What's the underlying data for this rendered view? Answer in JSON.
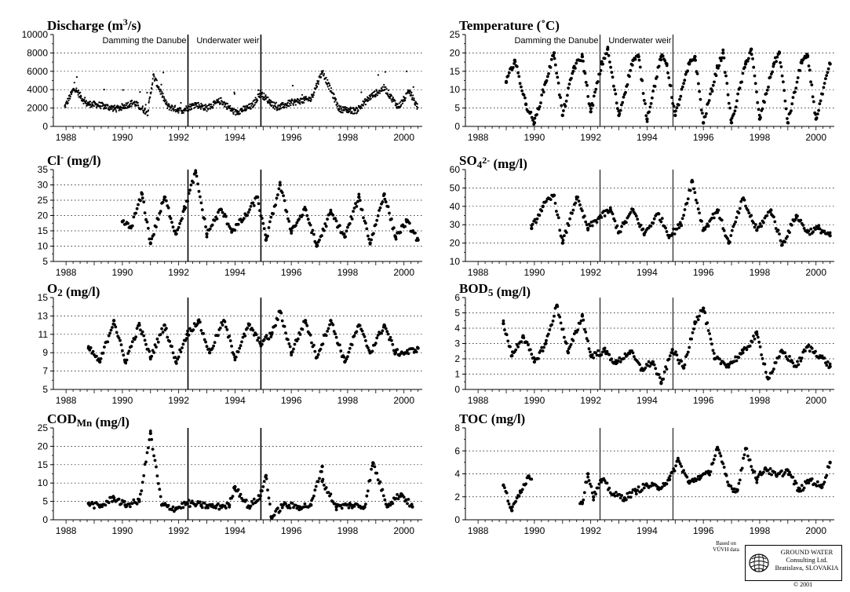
{
  "chart_data": [
    {
      "type": "scatter",
      "title": "Discharge (m³/s)",
      "title_main": "Discharge (m",
      "title_sup": "3",
      "title_tail": "/s)",
      "x_ticks": [
        "1988",
        "1990",
        "1992",
        "1994",
        "1996",
        "1998",
        "2000"
      ],
      "ylim": [
        0,
        10000
      ],
      "y_ticks": [
        0,
        2000,
        4000,
        6000,
        8000,
        10000
      ],
      "y_tick_labels": [
        "0",
        "2000",
        "4000",
        "6000",
        "8000",
        "10000"
      ],
      "grid": "dotted horizontal",
      "event_lines": [
        1992.33,
        1994.92
      ],
      "annotations": [
        "Damming the Danube",
        "Underwater weir"
      ],
      "series_desc": "daily discharge, continuous dense dots",
      "samples": [
        [
          1987.9,
          1800
        ],
        [
          1988.3,
          4200
        ],
        [
          1988.7,
          2500
        ],
        [
          1989.2,
          2300
        ],
        [
          1989.8,
          1900
        ],
        [
          1990.4,
          2600
        ],
        [
          1990.9,
          1500
        ],
        [
          1991.1,
          5500
        ],
        [
          1991.6,
          2200
        ],
        [
          1992.1,
          1700
        ],
        [
          1992.6,
          2400
        ],
        [
          1993.0,
          2000
        ],
        [
          1993.5,
          2800
        ],
        [
          1994.0,
          1500
        ],
        [
          1994.6,
          2200
        ],
        [
          1994.9,
          3600
        ],
        [
          1995.5,
          2000
        ],
        [
          1996.0,
          2600
        ],
        [
          1996.7,
          3000
        ],
        [
          1997.1,
          6000
        ],
        [
          1997.7,
          1900
        ],
        [
          1998.3,
          1700
        ],
        [
          1998.8,
          3200
        ],
        [
          1999.3,
          4200
        ],
        [
          1999.8,
          2100
        ],
        [
          2000.2,
          3800
        ],
        [
          2000.5,
          2000
        ]
      ]
    },
    {
      "type": "scatter",
      "title": "Temperature (˚C)",
      "title_main": "Temperature (˚C)",
      "title_sup": "",
      "title_tail": "",
      "x_ticks": [
        "1988",
        "1990",
        "1992",
        "1994",
        "1996",
        "1998",
        "2000"
      ],
      "ylim": [
        0,
        25
      ],
      "y_ticks": [
        0,
        5,
        10,
        15,
        20,
        25
      ],
      "y_tick_labels": [
        "0",
        "5",
        "10",
        "15",
        "20",
        "25"
      ],
      "grid": "dotted horizontal",
      "event_lines": [
        1992.33,
        1994.92
      ],
      "annotations": [
        "Damming the Danube",
        "Underwater weir"
      ],
      "series_desc": "seasonal cycle, range about 0-22",
      "samples": [
        [
          1989.0,
          12
        ],
        [
          1989.3,
          18
        ],
        [
          1989.7,
          6
        ],
        [
          1990.0,
          1
        ],
        [
          1990.4,
          12
        ],
        [
          1990.7,
          20
        ],
        [
          1991.0,
          3
        ],
        [
          1991.4,
          16
        ],
        [
          1991.7,
          19
        ],
        [
          1992.0,
          4
        ],
        [
          1992.4,
          17
        ],
        [
          1992.6,
          21
        ],
        [
          1993.0,
          3
        ],
        [
          1993.5,
          18
        ],
        [
          1993.7,
          19
        ],
        [
          1994.0,
          2
        ],
        [
          1994.5,
          19
        ],
        [
          1994.7,
          17
        ],
        [
          1995.0,
          3
        ],
        [
          1995.5,
          17
        ],
        [
          1995.7,
          19
        ],
        [
          1996.0,
          1
        ],
        [
          1996.5,
          16
        ],
        [
          1996.7,
          20
        ],
        [
          1997.0,
          1
        ],
        [
          1997.5,
          17
        ],
        [
          1997.7,
          21
        ],
        [
          1998.0,
          2
        ],
        [
          1998.5,
          17
        ],
        [
          1998.7,
          20
        ],
        [
          1999.0,
          1
        ],
        [
          1999.5,
          18
        ],
        [
          1999.7,
          19
        ],
        [
          2000.0,
          2
        ],
        [
          2000.5,
          17
        ]
      ]
    },
    {
      "type": "scatter",
      "title": "Cl⁻ (mg/l)",
      "title_main": "Cl",
      "title_sup": "-",
      "title_tail": " (mg/l)",
      "x_ticks": [
        "1988",
        "1990",
        "1992",
        "1994",
        "1996",
        "1998",
        "2000"
      ],
      "ylim": [
        5,
        35
      ],
      "y_ticks": [
        5,
        10,
        15,
        20,
        25,
        30,
        35
      ],
      "y_tick_labels": [
        "5",
        "10",
        "15",
        "20",
        "25",
        "30",
        "35"
      ],
      "grid": "dotted horizontal",
      "event_lines": [
        1992.33,
        1994.92
      ],
      "annotations": [],
      "series_desc": "chloride, range about 9-34",
      "samples": [
        [
          1990.0,
          18
        ],
        [
          1990.3,
          16
        ],
        [
          1990.7,
          27
        ],
        [
          1991.0,
          11
        ],
        [
          1991.5,
          26
        ],
        [
          1991.9,
          14
        ],
        [
          1992.2,
          22
        ],
        [
          1992.6,
          34
        ],
        [
          1993.0,
          14
        ],
        [
          1993.5,
          22
        ],
        [
          1993.9,
          15
        ],
        [
          1994.4,
          20
        ],
        [
          1994.8,
          26
        ],
        [
          1995.1,
          12
        ],
        [
          1995.6,
          30
        ],
        [
          1996.0,
          15
        ],
        [
          1996.5,
          22
        ],
        [
          1996.9,
          10
        ],
        [
          1997.4,
          21
        ],
        [
          1997.9,
          13
        ],
        [
          1998.4,
          26
        ],
        [
          1998.8,
          11
        ],
        [
          1999.3,
          27
        ],
        [
          1999.7,
          13
        ],
        [
          2000.1,
          18
        ],
        [
          2000.5,
          12
        ]
      ]
    },
    {
      "type": "scatter",
      "title": "SO₄²⁻ (mg/l)",
      "title_main": "SO",
      "title_sub": "4",
      "title_sup": "2-",
      "title_tail": " (mg/l)",
      "x_ticks": [
        "1988",
        "1990",
        "1992",
        "1994",
        "1996",
        "1998",
        "2000"
      ],
      "ylim": [
        10,
        60
      ],
      "y_ticks": [
        10,
        20,
        30,
        40,
        50,
        60
      ],
      "y_tick_labels": [
        "10",
        "20",
        "30",
        "40",
        "50",
        "60"
      ],
      "grid": "dotted horizontal",
      "event_lines": [
        1992.33,
        1994.92
      ],
      "annotations": [],
      "series_desc": "sulphate, range about 17-56",
      "samples": [
        [
          1989.9,
          28
        ],
        [
          1990.3,
          40
        ],
        [
          1990.7,
          46
        ],
        [
          1991.0,
          20
        ],
        [
          1991.5,
          45
        ],
        [
          1991.9,
          28
        ],
        [
          1992.3,
          34
        ],
        [
          1992.7,
          38
        ],
        [
          1993.0,
          26
        ],
        [
          1993.5,
          38
        ],
        [
          1993.9,
          25
        ],
        [
          1994.4,
          36
        ],
        [
          1994.8,
          24
        ],
        [
          1995.2,
          30
        ],
        [
          1995.6,
          54
        ],
        [
          1996.0,
          27
        ],
        [
          1996.5,
          38
        ],
        [
          1996.9,
          20
        ],
        [
          1997.4,
          44
        ],
        [
          1997.9,
          27
        ],
        [
          1998.4,
          38
        ],
        [
          1998.8,
          19
        ],
        [
          1999.3,
          35
        ],
        [
          1999.7,
          26
        ],
        [
          2000.1,
          28
        ],
        [
          2000.5,
          24
        ]
      ]
    },
    {
      "type": "scatter",
      "title": "O₂ (mg/l)",
      "title_main": "O",
      "title_sub": "2",
      "title_sup": "",
      "title_tail": " (mg/l)",
      "x_ticks": [
        "1988",
        "1990",
        "1992",
        "1994",
        "1996",
        "1998",
        "2000"
      ],
      "ylim": [
        5,
        15
      ],
      "y_ticks": [
        5,
        7,
        9,
        11,
        13,
        15
      ],
      "y_tick_labels": [
        "5",
        "7",
        "9",
        "11",
        "13",
        "15"
      ],
      "grid": "dotted horizontal",
      "event_lines": [
        1992.33,
        1994.92
      ],
      "annotations": [],
      "series_desc": "dissolved oxygen, range about 7.5-14",
      "samples": [
        [
          1988.8,
          9.5
        ],
        [
          1989.2,
          8
        ],
        [
          1989.7,
          12.5
        ],
        [
          1990.1,
          8
        ],
        [
          1990.6,
          12
        ],
        [
          1991.0,
          8.5
        ],
        [
          1991.5,
          12
        ],
        [
          1991.9,
          8
        ],
        [
          1992.3,
          11
        ],
        [
          1992.7,
          12.5
        ],
        [
          1993.1,
          9
        ],
        [
          1993.6,
          12.5
        ],
        [
          1994.0,
          8.5
        ],
        [
          1994.5,
          12
        ],
        [
          1994.9,
          10
        ],
        [
          1995.3,
          11
        ],
        [
          1995.6,
          13.5
        ],
        [
          1996.0,
          9
        ],
        [
          1996.5,
          12.5
        ],
        [
          1996.9,
          8.5
        ],
        [
          1997.4,
          12.5
        ],
        [
          1997.9,
          8
        ],
        [
          1998.4,
          12
        ],
        [
          1998.8,
          9
        ],
        [
          1999.3,
          12
        ],
        [
          1999.7,
          9
        ],
        [
          2000.1,
          9
        ],
        [
          2000.5,
          9.5
        ]
      ]
    },
    {
      "type": "scatter",
      "title": "BOD₅ (mg/l)",
      "title_main": "BOD",
      "title_sub": "5",
      "title_sup": "",
      "title_tail": " (mg/l)",
      "x_ticks": [
        "1988",
        "1990",
        "1992",
        "1994",
        "1996",
        "1998",
        "2000"
      ],
      "ylim": [
        0,
        6
      ],
      "y_ticks": [
        0,
        1,
        2,
        3,
        4,
        5,
        6
      ],
      "y_tick_labels": [
        "0",
        "1",
        "2",
        "3",
        "4",
        "5",
        "6"
      ],
      "grid": "dotted horizontal",
      "event_lines": [
        1992.33,
        1994.92
      ],
      "annotations": [],
      "series_desc": "biochemical oxygen demand, range about 0.3-5.5",
      "samples": [
        [
          1988.9,
          4.3
        ],
        [
          1989.2,
          2.2
        ],
        [
          1989.6,
          3.5
        ],
        [
          1990.0,
          1.8
        ],
        [
          1990.4,
          3.0
        ],
        [
          1990.8,
          5.5
        ],
        [
          1991.2,
          2.4
        ],
        [
          1991.7,
          4.8
        ],
        [
          1992.0,
          2.2
        ],
        [
          1992.5,
          2.5
        ],
        [
          1992.9,
          1.7
        ],
        [
          1993.4,
          2.5
        ],
        [
          1993.8,
          1.3
        ],
        [
          1994.2,
          1.8
        ],
        [
          1994.5,
          0.4
        ],
        [
          1994.9,
          2.6
        ],
        [
          1995.3,
          1.4
        ],
        [
          1995.7,
          4.4
        ],
        [
          1996.0,
          5.3
        ],
        [
          1996.4,
          2.0
        ],
        [
          1996.9,
          1.6
        ],
        [
          1997.4,
          2.4
        ],
        [
          1997.9,
          3.6
        ],
        [
          1998.3,
          0.7
        ],
        [
          1998.8,
          2.5
        ],
        [
          1999.3,
          1.5
        ],
        [
          1999.7,
          2.8
        ],
        [
          2000.2,
          2.1
        ],
        [
          2000.5,
          1.5
        ]
      ]
    },
    {
      "type": "scatter",
      "title": "CODMn (mg/l)",
      "title_main": "COD",
      "title_sub": "Mn",
      "title_sup": "",
      "title_tail": " (mg/l)",
      "x_ticks": [
        "1988",
        "1990",
        "1992",
        "1994",
        "1996",
        "1998",
        "2000"
      ],
      "ylim": [
        0,
        25
      ],
      "y_ticks": [
        0,
        5,
        10,
        15,
        20,
        25
      ],
      "y_tick_labels": [
        "0",
        "5",
        "10",
        "15",
        "20",
        "25"
      ],
      "grid": "dotted horizontal",
      "event_lines": [
        1992.33,
        1994.92
      ],
      "annotations": [],
      "series_desc": "chemical oxygen demand, mostly 3-6 with outliers",
      "samples": [
        [
          1988.8,
          4.5
        ],
        [
          1989.2,
          3.5
        ],
        [
          1989.7,
          6
        ],
        [
          1990.1,
          4
        ],
        [
          1990.6,
          5
        ],
        [
          1991.0,
          23.5
        ],
        [
          1991.4,
          4
        ],
        [
          1991.9,
          3
        ],
        [
          1992.3,
          4.5
        ],
        [
          1992.8,
          4
        ],
        [
          1993.3,
          3.5
        ],
        [
          1993.8,
          4
        ],
        [
          1994.0,
          9
        ],
        [
          1994.5,
          3.5
        ],
        [
          1994.9,
          6.5
        ],
        [
          1995.1,
          12
        ],
        [
          1995.3,
          0.5
        ],
        [
          1995.7,
          4
        ],
        [
          1996.3,
          3.5
        ],
        [
          1996.7,
          4
        ],
        [
          1997.1,
          14.5
        ],
        [
          1997.1,
          10.5
        ],
        [
          1997.6,
          3.5
        ],
        [
          1998.1,
          4
        ],
        [
          1998.6,
          3.5
        ],
        [
          1998.9,
          15.5
        ],
        [
          1999.4,
          4
        ],
        [
          1999.9,
          7
        ],
        [
          2000.3,
          3.5
        ]
      ]
    },
    {
      "type": "scatter",
      "title": "TOC (mg/l)",
      "title_main": "TOC (mg/l)",
      "title_sup": "",
      "title_tail": "",
      "x_ticks": [
        "1988",
        "1990",
        "1992",
        "1994",
        "1996",
        "1998",
        "2000"
      ],
      "ylim": [
        0,
        8
      ],
      "y_ticks": [
        0,
        2,
        4,
        6,
        8
      ],
      "y_tick_labels": [
        "0",
        "2",
        "4",
        "6",
        "8"
      ],
      "grid": "dotted horizontal",
      "event_lines": [
        1992.33,
        1994.92
      ],
      "annotations": [],
      "series_desc": "total organic carbon, range about 0.8-6.5",
      "samples": [
        [
          1988.9,
          3.0
        ],
        [
          1989.2,
          0.8
        ],
        [
          1989.5,
          2.5
        ],
        [
          1989.8,
          3.8
        ],
        [
          1991.7,
          1.5
        ],
        [
          1991.9,
          4.0
        ],
        [
          1992.1,
          2.0
        ],
        [
          1992.4,
          3.5
        ],
        [
          1992.8,
          2.2
        ],
        [
          1993.2,
          1.9
        ],
        [
          1993.6,
          2.5
        ],
        [
          1994.0,
          3.0
        ],
        [
          1994.4,
          2.8
        ],
        [
          1994.8,
          3.5
        ],
        [
          1995.1,
          5.2
        ],
        [
          1995.5,
          3.2
        ],
        [
          1995.9,
          3.8
        ],
        [
          1996.2,
          4.0
        ],
        [
          1996.5,
          6.3
        ],
        [
          1996.9,
          3.0
        ],
        [
          1997.2,
          2.5
        ],
        [
          1997.5,
          6.2
        ],
        [
          1997.9,
          3.5
        ],
        [
          1998.2,
          4.5
        ],
        [
          1998.6,
          3.8
        ],
        [
          1999.0,
          4.3
        ],
        [
          1999.4,
          2.5
        ],
        [
          1999.8,
          3.5
        ],
        [
          2000.2,
          2.8
        ],
        [
          2000.5,
          5.0
        ]
      ]
    }
  ],
  "footer": {
    "based_on_line1": "Based on",
    "based_on_line2": "VÚVH data",
    "company_line1": "GROUND WATER",
    "company_line2": "Consulting Ltd.",
    "company_line3": "Bratislava, SLOVAKIA",
    "copyright": "© 2001"
  }
}
